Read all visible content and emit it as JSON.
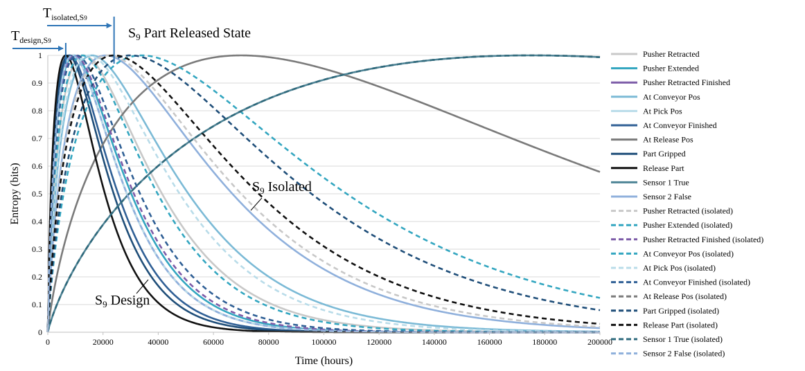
{
  "chart_data": {
    "type": "line",
    "xlabel": "Time (hours)",
    "ylabel": "Entropy (bits)",
    "xlim": [
      0,
      200000
    ],
    "ylim": [
      0,
      1
    ],
    "x_ticks": [
      0,
      20000,
      40000,
      60000,
      80000,
      100000,
      120000,
      140000,
      160000,
      180000,
      200000
    ],
    "y_ticks": [
      0,
      0.1,
      0.2,
      0.3,
      0.4,
      0.5,
      0.6,
      0.7,
      0.8,
      0.9,
      1
    ],
    "grid": "horizontal",
    "legend_position": "right",
    "annotations": {
      "t_design": {
        "base": "T",
        "sub": "design,S",
        "sub2": "9"
      },
      "t_isolated": {
        "base": "T",
        "sub": "isolated,S",
        "sub2": "9"
      },
      "state_title": {
        "prefix": "S",
        "sub": "9",
        "rest": " Part Released State"
      },
      "isolated_label": {
        "prefix": "S",
        "sub": "9",
        "rest": " Isolated"
      },
      "design_label": {
        "prefix": "S",
        "sub": "9",
        "rest": " Design"
      }
    },
    "series": [
      {
        "name": "Pusher Retracted",
        "color": "#c8c8c8",
        "dashed": false,
        "peak_x": 13000
      },
      {
        "name": "Pusher Extended",
        "color": "#33a6c0",
        "dashed": false,
        "peak_x": 9500
      },
      {
        "name": "Pusher Retracted Finished",
        "color": "#7d5ca8",
        "dashed": false,
        "peak_x": 9000
      },
      {
        "name": "At Conveyor Pos",
        "color": "#7bbad6",
        "dashed": false,
        "peak_x": 16000
      },
      {
        "name": "At Pick Pos",
        "color": "#b9dce9",
        "dashed": false,
        "peak_x": 9000
      },
      {
        "name": "At Conveyor Finished",
        "color": "#2f5f95",
        "dashed": false,
        "peak_x": 8000
      },
      {
        "name": "At Release Pos",
        "color": "#7a7a7a",
        "dashed": false,
        "peak_x": 70000
      },
      {
        "name": "Part Gripped",
        "color": "#1f4e79",
        "dashed": false,
        "peak_x": 7500
      },
      {
        "name": "Release Part",
        "color": "#111111",
        "dashed": false,
        "peak_x": 6500
      },
      {
        "name": "Sensor 1 True",
        "color": "#4e8496",
        "dashed": false,
        "peak_x": 175000
      },
      {
        "name": "Sensor 2 False",
        "color": "#8fb0dc",
        "dashed": false,
        "peak_x": 21000
      },
      {
        "name": "Pusher Retracted (isolated)",
        "color": "#c8c8c8",
        "dashed": true,
        "peak_x": 22000
      },
      {
        "name": "Pusher Extended (isolated)",
        "color": "#33a6c0",
        "dashed": true,
        "peak_x": 12500
      },
      {
        "name": "Pusher Retracted Finished (isolated)",
        "color": "#7d5ca8",
        "dashed": true,
        "peak_x": 9800
      },
      {
        "name": "At Conveyor Pos (isolated)",
        "color": "#33a6c0",
        "dashed": true,
        "peak_x": 34000
      },
      {
        "name": "At Pick Pos (isolated)",
        "color": "#b9dce9",
        "dashed": true,
        "peak_x": 15000
      },
      {
        "name": "At Conveyor Finished (isolated)",
        "color": "#2f5f95",
        "dashed": true,
        "peak_x": 10500
      },
      {
        "name": "At Release Pos (isolated)",
        "color": "#7a7a7a",
        "dashed": true,
        "peak_x": 175000
      },
      {
        "name": "Part Gripped (isolated)",
        "color": "#1f4e79",
        "dashed": true,
        "peak_x": 30000
      },
      {
        "name": "Release Part (isolated)",
        "color": "#111111",
        "dashed": true,
        "peak_x": 24000
      },
      {
        "name": "Sensor 1 True (isolated)",
        "color": "#2e6a7d",
        "dashed": true,
        "peak_x": 175000
      },
      {
        "name": "Sensor 2 False (isolated)",
        "color": "#8fb0dc",
        "dashed": true,
        "peak_x": 9000
      }
    ]
  }
}
